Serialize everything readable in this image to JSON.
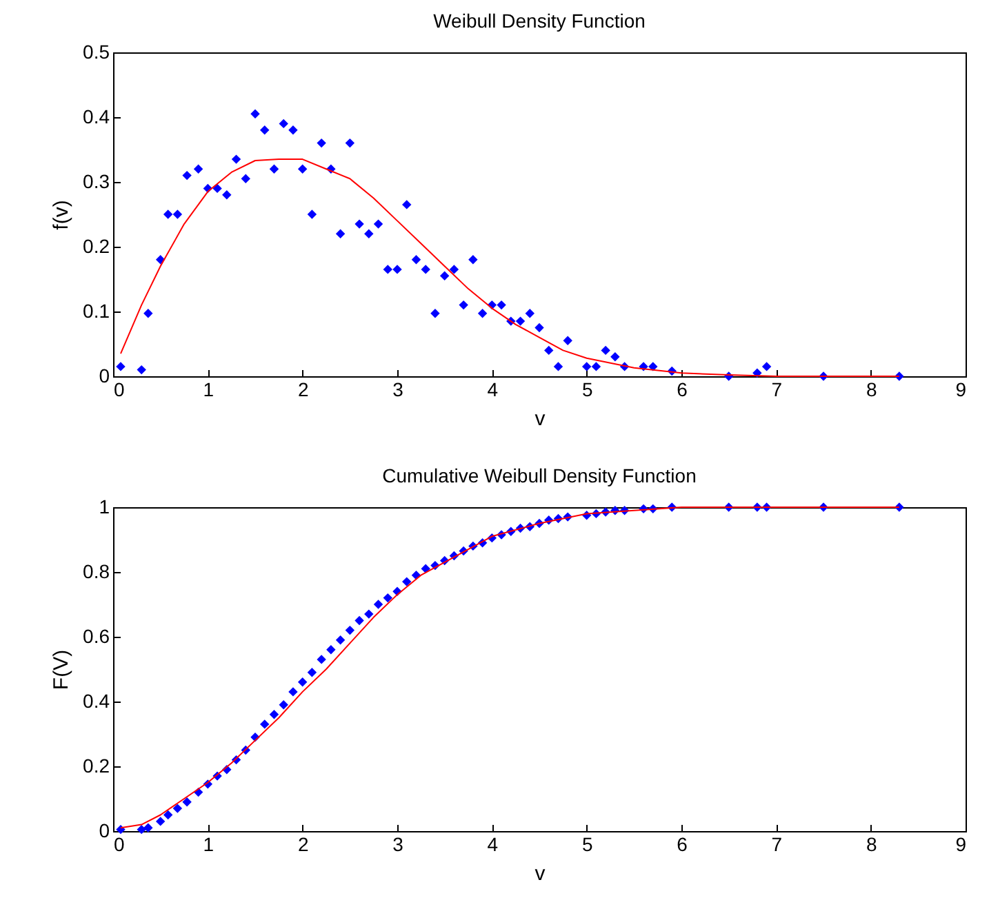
{
  "chart_data": [
    {
      "type": "scatter",
      "title": "Weibull Density Function",
      "xlabel": "v",
      "ylabel": "f(v)",
      "xlim": [
        0,
        9
      ],
      "xticks": [
        0,
        1,
        2,
        3,
        4,
        5,
        6,
        7,
        8,
        9
      ],
      "ylim": [
        0,
        0.5
      ],
      "yticks": [
        0,
        0.1,
        0.2,
        0.3,
        0.4,
        0.5
      ],
      "series": [
        {
          "type": "scatter",
          "marker": "diamond",
          "color": "#0000ff",
          "x": [
            0.08,
            0.3,
            0.37,
            0.5,
            0.58,
            0.68,
            0.78,
            0.9,
            1.0,
            1.1,
            1.2,
            1.3,
            1.4,
            1.5,
            1.6,
            1.7,
            1.8,
            1.9,
            2.0,
            2.1,
            2.2,
            2.3,
            2.4,
            2.5,
            2.6,
            2.7,
            2.8,
            2.9,
            3.0,
            3.1,
            3.2,
            3.3,
            3.4,
            3.5,
            3.6,
            3.7,
            3.8,
            3.9,
            4.0,
            4.1,
            4.2,
            4.3,
            4.4,
            4.5,
            4.6,
            4.7,
            4.8,
            5.0,
            5.1,
            5.2,
            5.3,
            5.4,
            5.6,
            5.7,
            5.9,
            6.5,
            6.8,
            6.9,
            7.5,
            8.3
          ],
          "values": [
            0.015,
            0.01,
            0.097,
            0.18,
            0.25,
            0.25,
            0.31,
            0.32,
            0.29,
            0.29,
            0.28,
            0.335,
            0.305,
            0.405,
            0.38,
            0.32,
            0.39,
            0.38,
            0.32,
            0.25,
            0.36,
            0.32,
            0.22,
            0.36,
            0.235,
            0.22,
            0.235,
            0.165,
            0.165,
            0.265,
            0.18,
            0.165,
            0.097,
            0.155,
            0.165,
            0.11,
            0.18,
            0.097,
            0.11,
            0.11,
            0.085,
            0.085,
            0.097,
            0.075,
            0.04,
            0.015,
            0.055,
            0.015,
            0.015,
            0.04,
            0.03,
            0.015,
            0.015,
            0.015,
            0.008,
            0,
            0.005,
            0.015,
            0,
            0
          ]
        },
        {
          "type": "line",
          "color": "#ff0000",
          "x": [
            0.08,
            0.3,
            0.5,
            0.75,
            1.0,
            1.25,
            1.5,
            1.75,
            2.0,
            2.25,
            2.5,
            2.75,
            3.0,
            3.25,
            3.5,
            3.75,
            4.0,
            4.25,
            4.5,
            4.75,
            5.0,
            5.5,
            6.0,
            6.5,
            7.0,
            8.3
          ],
          "values": [
            0.035,
            0.11,
            0.17,
            0.235,
            0.285,
            0.315,
            0.333,
            0.335,
            0.335,
            0.32,
            0.305,
            0.275,
            0.24,
            0.205,
            0.17,
            0.135,
            0.105,
            0.08,
            0.06,
            0.04,
            0.028,
            0.013,
            0.005,
            0.002,
            0,
            0
          ]
        }
      ]
    },
    {
      "type": "scatter",
      "title": "Cumulative Weibull Density Function",
      "xlabel": "v",
      "ylabel": "F(V)",
      "xlim": [
        0,
        9
      ],
      "xticks": [
        0,
        1,
        2,
        3,
        4,
        5,
        6,
        7,
        8,
        9
      ],
      "ylim": [
        0,
        1
      ],
      "yticks": [
        0,
        0.2,
        0.4,
        0.6,
        0.8,
        1
      ],
      "series": [
        {
          "type": "scatter",
          "marker": "diamond",
          "color": "#0000ff",
          "x": [
            0.08,
            0.3,
            0.37,
            0.5,
            0.58,
            0.68,
            0.78,
            0.9,
            1.0,
            1.1,
            1.2,
            1.3,
            1.4,
            1.5,
            1.6,
            1.7,
            1.8,
            1.9,
            2.0,
            2.1,
            2.2,
            2.3,
            2.4,
            2.5,
            2.6,
            2.7,
            2.8,
            2.9,
            3.0,
            3.1,
            3.2,
            3.3,
            3.4,
            3.5,
            3.6,
            3.7,
            3.8,
            3.9,
            4.0,
            4.1,
            4.2,
            4.3,
            4.4,
            4.5,
            4.6,
            4.7,
            4.8,
            5.0,
            5.1,
            5.2,
            5.3,
            5.4,
            5.6,
            5.7,
            5.9,
            6.5,
            6.8,
            6.9,
            7.5,
            8.3
          ],
          "values": [
            0.005,
            0.005,
            0.01,
            0.03,
            0.05,
            0.07,
            0.09,
            0.12,
            0.145,
            0.17,
            0.19,
            0.22,
            0.25,
            0.29,
            0.33,
            0.36,
            0.39,
            0.43,
            0.46,
            0.49,
            0.53,
            0.56,
            0.59,
            0.62,
            0.65,
            0.67,
            0.7,
            0.72,
            0.74,
            0.77,
            0.79,
            0.81,
            0.82,
            0.835,
            0.85,
            0.865,
            0.88,
            0.89,
            0.905,
            0.915,
            0.925,
            0.935,
            0.94,
            0.95,
            0.96,
            0.965,
            0.97,
            0.975,
            0.98,
            0.985,
            0.99,
            0.99,
            0.995,
            0.995,
            1,
            1,
            1,
            1,
            1,
            1
          ]
        },
        {
          "type": "line",
          "color": "#ff0000",
          "x": [
            0.08,
            0.3,
            0.5,
            0.75,
            1.0,
            1.25,
            1.5,
            1.75,
            2.0,
            2.25,
            2.5,
            2.75,
            3.0,
            3.25,
            3.5,
            3.75,
            4.0,
            4.5,
            5.0,
            5.5,
            6.0,
            7.0,
            8.3
          ],
          "values": [
            0.01,
            0.02,
            0.05,
            0.1,
            0.15,
            0.21,
            0.28,
            0.35,
            0.43,
            0.5,
            0.58,
            0.66,
            0.73,
            0.79,
            0.83,
            0.87,
            0.91,
            0.95,
            0.98,
            0.99,
            1,
            1,
            1
          ]
        }
      ]
    }
  ]
}
